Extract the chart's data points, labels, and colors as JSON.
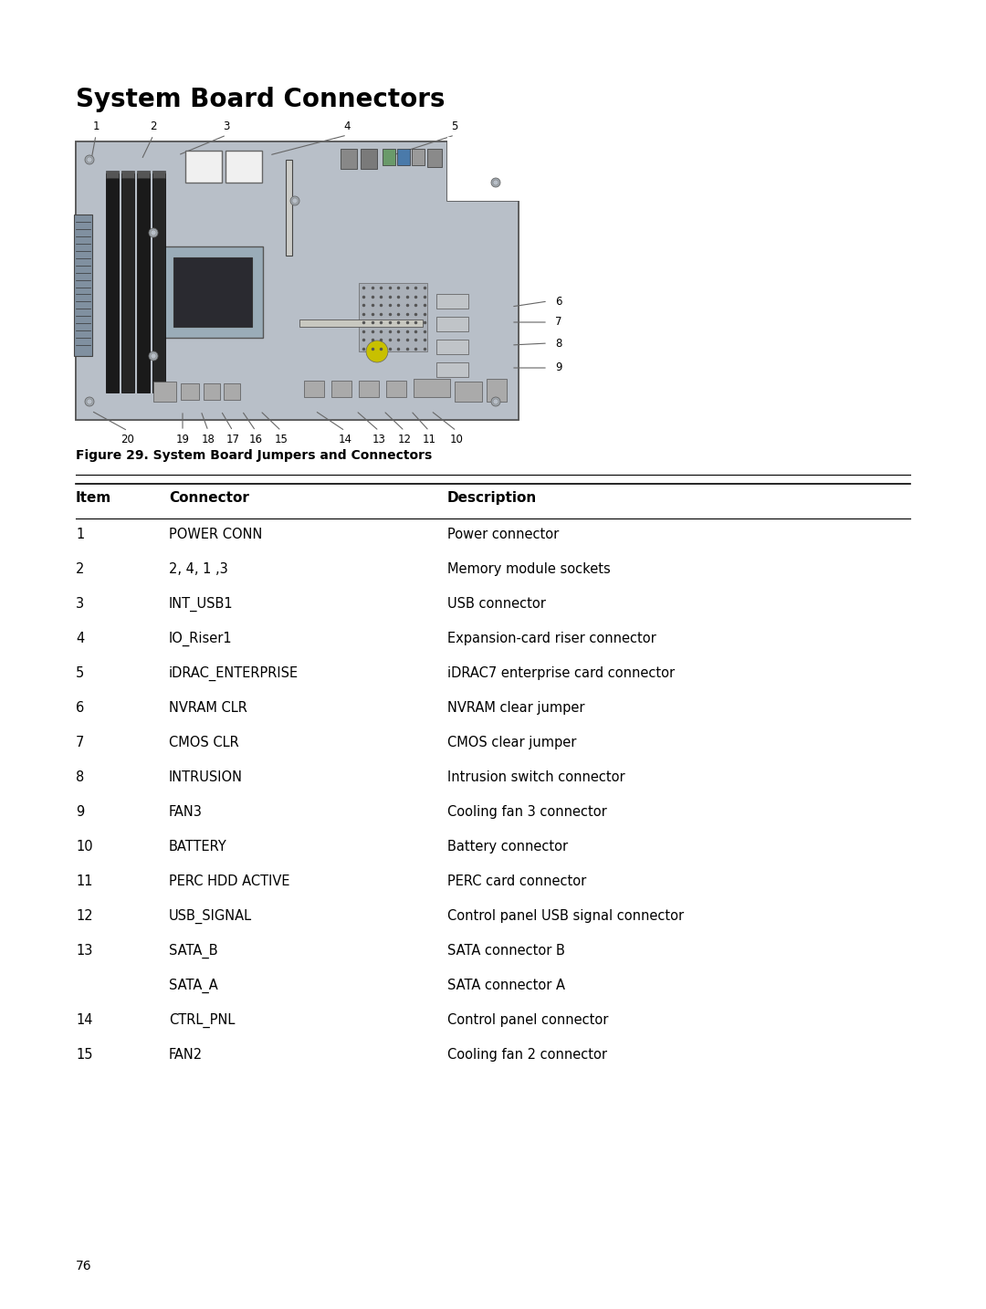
{
  "title": "System Board Connectors",
  "figure_caption": "Figure 29. System Board Jumpers and Connectors",
  "page_number": "76",
  "table_headers": [
    "Item",
    "Connector",
    "Description"
  ],
  "table_rows": [
    [
      "1",
      "POWER CONN",
      "Power connector"
    ],
    [
      "2",
      "2, 4, 1 ,3",
      "Memory module sockets"
    ],
    [
      "3",
      "INT_USB1",
      "USB connector"
    ],
    [
      "4",
      "IO_Riser1",
      "Expansion-card riser connector"
    ],
    [
      "5",
      "iDRAC_ENTERPRISE",
      "iDRAC7 enterprise card connector"
    ],
    [
      "6",
      "NVRAM CLR",
      "NVRAM clear jumper"
    ],
    [
      "7",
      "CMOS CLR",
      "CMOS clear jumper"
    ],
    [
      "8",
      "INTRUSION",
      "Intrusion switch connector"
    ],
    [
      "9",
      "FAN3",
      "Cooling fan 3 connector"
    ],
    [
      "10",
      "BATTERY",
      "Battery connector"
    ],
    [
      "11",
      "PERC HDD ACTIVE",
      "PERC card connector"
    ],
    [
      "12",
      "USB_SIGNAL",
      "Control panel USB signal connector"
    ],
    [
      "13",
      "SATA_B",
      "SATA connector B"
    ],
    [
      "",
      "SATA_A",
      "SATA connector A"
    ],
    [
      "14",
      "CTRL_PNL",
      "Control panel connector"
    ],
    [
      "15",
      "FAN2",
      "Cooling fan 2 connector"
    ]
  ],
  "bg_color": "#ffffff",
  "line_color": "#000000",
  "title_fontsize": 20,
  "header_fontsize": 11,
  "body_fontsize": 10.5,
  "caption_fontsize": 10,
  "page_num_fontsize": 10,
  "board_color": "#b8bfc8",
  "board_edge": "#555555",
  "slot_dark": "#1a1a1a",
  "slot_mid": "#2a2a2a"
}
